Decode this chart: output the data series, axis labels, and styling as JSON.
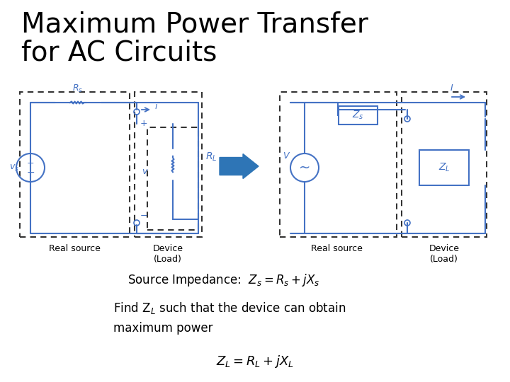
{
  "title_line1": "Maximum Power Transfer",
  "title_line2": "for AC Circuits",
  "title_fontsize": 28,
  "bg_color": "#ffffff",
  "text_color": "#000000",
  "circuit_color": "#4472c4",
  "dashed_box_color": "#333333",
  "arrow_color": "#2e75b6",
  "source_impedance_label": "Source Impedance:  $Z_s = R_s + jX_s$",
  "find_text_line1": "Find Z$_L$ such that the device can obtain",
  "find_text_line2": "maximum power",
  "zl_formula": "$Z_L = R_L + jX_L$",
  "label_real_source_left": "Real source",
  "label_device_left": "Device\n(Load)",
  "label_real_source_right": "Real source",
  "label_device_right": "Device\n(Load)"
}
